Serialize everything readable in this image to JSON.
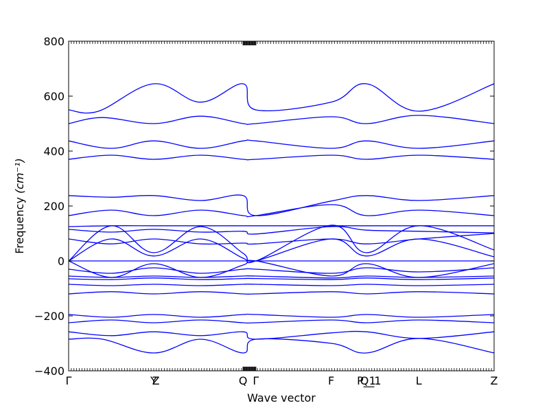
{
  "chart_data": {
    "type": "line",
    "title": "",
    "xlabel": "Wave vector",
    "ylabel": "Frequency",
    "ylabel_unit": "(cm⁻¹)",
    "ylim": [
      -400,
      800
    ],
    "yticks": [
      -400,
      -200,
      0,
      200,
      400,
      600,
      800
    ],
    "xlim": [
      0,
      1
    ],
    "series_color": "#0000ff",
    "high_symbol_points": [
      {
        "label": "Γ",
        "x": 0.0
      },
      {
        "label": "Y",
        "x": 0.2
      },
      {
        "label": "Z",
        "x": 0.205
      },
      {
        "label": "Q",
        "x": 0.41
      },
      {
        "label": "Γ",
        "x": 0.44
      },
      {
        "label": "F",
        "x": 0.617
      },
      {
        "label": "P_1",
        "x": 0.7
      },
      {
        "label": "Q_1",
        "x": 0.71
      },
      {
        "label": "L",
        "x": 0.823
      },
      {
        "label": "Z",
        "x": 1.0
      }
    ],
    "series": [
      {
        "values": [
          [
            0,
            550
          ],
          [
            0.07,
            545
          ],
          [
            0.2,
            645
          ],
          [
            0.31,
            578
          ],
          [
            0.41,
            645
          ],
          [
            0.44,
            550
          ],
          [
            0.617,
            578
          ],
          [
            0.7,
            645
          ],
          [
            0.823,
            545
          ],
          [
            1.0,
            645
          ]
        ]
      },
      {
        "values": [
          [
            0,
            500
          ],
          [
            0.08,
            522
          ],
          [
            0.2,
            500
          ],
          [
            0.31,
            527
          ],
          [
            0.41,
            500
          ],
          [
            0.44,
            500
          ],
          [
            0.617,
            525
          ],
          [
            0.7,
            500
          ],
          [
            0.823,
            530
          ],
          [
            1.0,
            500
          ]
        ]
      },
      {
        "values": [
          [
            0,
            437
          ],
          [
            0.1,
            410
          ],
          [
            0.2,
            437
          ],
          [
            0.31,
            410
          ],
          [
            0.41,
            437
          ],
          [
            0.44,
            437
          ],
          [
            0.617,
            410
          ],
          [
            0.7,
            437
          ],
          [
            0.823,
            410
          ],
          [
            1.0,
            437
          ]
        ]
      },
      {
        "values": [
          [
            0,
            370
          ],
          [
            0.1,
            385
          ],
          [
            0.2,
            370
          ],
          [
            0.31,
            385
          ],
          [
            0.41,
            370
          ],
          [
            0.44,
            370
          ],
          [
            0.617,
            385
          ],
          [
            0.7,
            370
          ],
          [
            0.823,
            385
          ],
          [
            1.0,
            370
          ]
        ]
      },
      {
        "values": [
          [
            0,
            238
          ],
          [
            0.1,
            232
          ],
          [
            0.2,
            238
          ],
          [
            0.31,
            220
          ],
          [
            0.41,
            238
          ],
          [
            0.44,
            165
          ],
          [
            0.617,
            218
          ],
          [
            0.7,
            238
          ],
          [
            0.823,
            220
          ],
          [
            1.0,
            238
          ]
        ]
      },
      {
        "values": [
          [
            0,
            165
          ],
          [
            0.1,
            185
          ],
          [
            0.2,
            165
          ],
          [
            0.31,
            185
          ],
          [
            0.41,
            165
          ],
          [
            0.44,
            165
          ],
          [
            0.617,
            205
          ],
          [
            0.7,
            165
          ],
          [
            0.823,
            185
          ],
          [
            1.0,
            165
          ]
        ]
      },
      {
        "values": [
          [
            0,
            125
          ],
          [
            0.1,
            128
          ],
          [
            0.2,
            128
          ],
          [
            0.31,
            128
          ],
          [
            0.41,
            128
          ],
          [
            0.44,
            128
          ],
          [
            0.617,
            128
          ],
          [
            0.7,
            128
          ],
          [
            0.823,
            128
          ],
          [
            1.0,
            128
          ]
        ]
      },
      {
        "values": [
          [
            0,
            115
          ],
          [
            0.1,
            105
          ],
          [
            0.2,
            115
          ],
          [
            0.31,
            105
          ],
          [
            0.41,
            108
          ],
          [
            0.44,
            98
          ],
          [
            0.617,
            125
          ],
          [
            0.7,
            112
          ],
          [
            0.823,
            108
          ],
          [
            1.0,
            102
          ]
        ]
      },
      {
        "values": [
          [
            0,
            0
          ],
          [
            0.1,
            128
          ],
          [
            0.2,
            30
          ],
          [
            0.31,
            125
          ],
          [
            0.41,
            28
          ],
          [
            0.44,
            0
          ],
          [
            0.617,
            130
          ],
          [
            0.7,
            30
          ],
          [
            0.823,
            128
          ],
          [
            1.0,
            40
          ]
        ]
      },
      {
        "values": [
          [
            0,
            0
          ],
          [
            0.1,
            80
          ],
          [
            0.2,
            18
          ],
          [
            0.31,
            80
          ],
          [
            0.41,
            10
          ],
          [
            0.44,
            0
          ],
          [
            0.617,
            80
          ],
          [
            0.7,
            18
          ],
          [
            0.823,
            80
          ],
          [
            1.0,
            15
          ]
        ]
      },
      {
        "values": [
          [
            0,
            80
          ],
          [
            0.1,
            62
          ],
          [
            0.2,
            80
          ],
          [
            0.31,
            62
          ],
          [
            0.41,
            65
          ],
          [
            0.44,
            62
          ],
          [
            0.617,
            80
          ],
          [
            0.7,
            62
          ],
          [
            0.823,
            80
          ],
          [
            1.0,
            100
          ]
        ]
      },
      {
        "values": [
          [
            0,
            0
          ],
          [
            0.2,
            0
          ],
          [
            0.41,
            0
          ],
          [
            0.44,
            0
          ],
          [
            0.617,
            0
          ],
          [
            0.7,
            0
          ],
          [
            0.823,
            0
          ],
          [
            1.0,
            0
          ]
        ]
      },
      {
        "values": [
          [
            0,
            0
          ],
          [
            0.1,
            -60
          ],
          [
            0.2,
            -10
          ],
          [
            0.31,
            -60
          ],
          [
            0.41,
            -15
          ],
          [
            0.44,
            0
          ],
          [
            0.617,
            -55
          ],
          [
            0.7,
            -10
          ],
          [
            0.823,
            -60
          ],
          [
            1.0,
            -10
          ]
        ]
      },
      {
        "values": [
          [
            0,
            -30
          ],
          [
            0.1,
            -45
          ],
          [
            0.2,
            -25
          ],
          [
            0.31,
            -45
          ],
          [
            0.41,
            -30
          ],
          [
            0.44,
            -30
          ],
          [
            0.617,
            -45
          ],
          [
            0.7,
            -25
          ],
          [
            0.823,
            -40
          ],
          [
            1.0,
            -25
          ]
        ]
      },
      {
        "values": [
          [
            0,
            -55
          ],
          [
            0.1,
            -60
          ],
          [
            0.2,
            -55
          ],
          [
            0.31,
            -60
          ],
          [
            0.41,
            -55
          ],
          [
            0.44,
            -55
          ],
          [
            0.617,
            -62
          ],
          [
            0.7,
            -55
          ],
          [
            0.823,
            -60
          ],
          [
            1.0,
            -55
          ]
        ]
      },
      {
        "values": [
          [
            0,
            -65
          ],
          [
            0.1,
            -68
          ],
          [
            0.2,
            -62
          ],
          [
            0.31,
            -68
          ],
          [
            0.41,
            -64
          ],
          [
            0.44,
            -64
          ],
          [
            0.617,
            -68
          ],
          [
            0.7,
            -62
          ],
          [
            0.823,
            -68
          ],
          [
            1.0,
            -62
          ]
        ]
      },
      {
        "values": [
          [
            0,
            -85
          ],
          [
            0.1,
            -90
          ],
          [
            0.2,
            -85
          ],
          [
            0.31,
            -90
          ],
          [
            0.41,
            -85
          ],
          [
            0.44,
            -85
          ],
          [
            0.617,
            -90
          ],
          [
            0.7,
            -85
          ],
          [
            0.823,
            -90
          ],
          [
            1.0,
            -85
          ]
        ]
      },
      {
        "values": [
          [
            0,
            -120
          ],
          [
            0.1,
            -112
          ],
          [
            0.2,
            -120
          ],
          [
            0.31,
            -112
          ],
          [
            0.41,
            -120
          ],
          [
            0.44,
            -120
          ],
          [
            0.617,
            -112
          ],
          [
            0.7,
            -120
          ],
          [
            0.823,
            -112
          ],
          [
            1.0,
            -120
          ]
        ]
      },
      {
        "values": [
          [
            0,
            -195
          ],
          [
            0.1,
            -205
          ],
          [
            0.2,
            -195
          ],
          [
            0.31,
            -205
          ],
          [
            0.41,
            -195
          ],
          [
            0.44,
            -195
          ],
          [
            0.617,
            -205
          ],
          [
            0.7,
            -195
          ],
          [
            0.823,
            -205
          ],
          [
            1.0,
            -195
          ]
        ]
      },
      {
        "values": [
          [
            0,
            -225
          ],
          [
            0.1,
            -215
          ],
          [
            0.2,
            -225
          ],
          [
            0.31,
            -215
          ],
          [
            0.41,
            -225
          ],
          [
            0.44,
            -225
          ],
          [
            0.617,
            -215
          ],
          [
            0.7,
            -225
          ],
          [
            0.823,
            -215
          ],
          [
            1.0,
            -225
          ]
        ]
      },
      {
        "values": [
          [
            0,
            -258
          ],
          [
            0.1,
            -272
          ],
          [
            0.2,
            -258
          ],
          [
            0.31,
            -272
          ],
          [
            0.41,
            -258
          ],
          [
            0.44,
            -285
          ],
          [
            0.617,
            -262
          ],
          [
            0.7,
            -258
          ],
          [
            0.823,
            -282
          ],
          [
            1.0,
            -258
          ]
        ]
      },
      {
        "values": [
          [
            0,
            -285
          ],
          [
            0.08,
            -285
          ],
          [
            0.2,
            -335
          ],
          [
            0.31,
            -285
          ],
          [
            0.41,
            -335
          ],
          [
            0.44,
            -285
          ],
          [
            0.617,
            -300
          ],
          [
            0.7,
            -335
          ],
          [
            0.823,
            -282
          ],
          [
            1.0,
            -335
          ]
        ]
      }
    ]
  }
}
